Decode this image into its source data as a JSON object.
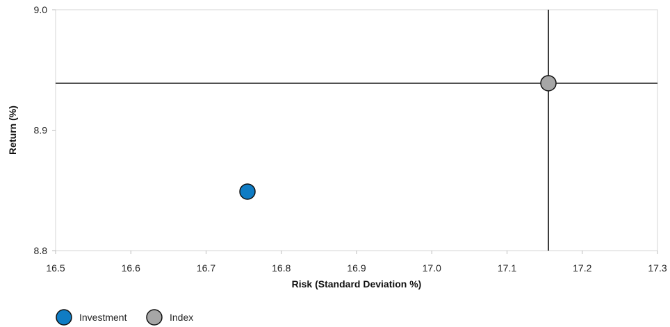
{
  "chart_data": {
    "type": "scatter",
    "xlabel": "Risk (Standard Deviation %)",
    "ylabel": "Return (%)",
    "xlim": [
      16.5,
      17.3
    ],
    "ylim": [
      8.8,
      9.0
    ],
    "x_ticks": [
      "16.5",
      "16.6",
      "16.7",
      "16.8",
      "16.9",
      "17.0",
      "17.1",
      "17.2",
      "17.3"
    ],
    "y_ticks": [
      "8.8",
      "8.9",
      "9.0"
    ],
    "grid": false,
    "legend_position": "bottom-left",
    "series": [
      {
        "name": "Investment",
        "x": 16.755,
        "y": 8.849,
        "color": "#0f7cc4"
      },
      {
        "name": "Index",
        "x": 17.155,
        "y": 8.939,
        "color": "#a6a6a6"
      }
    ],
    "reference_lines": {
      "x": 17.155,
      "y": 8.939
    }
  }
}
